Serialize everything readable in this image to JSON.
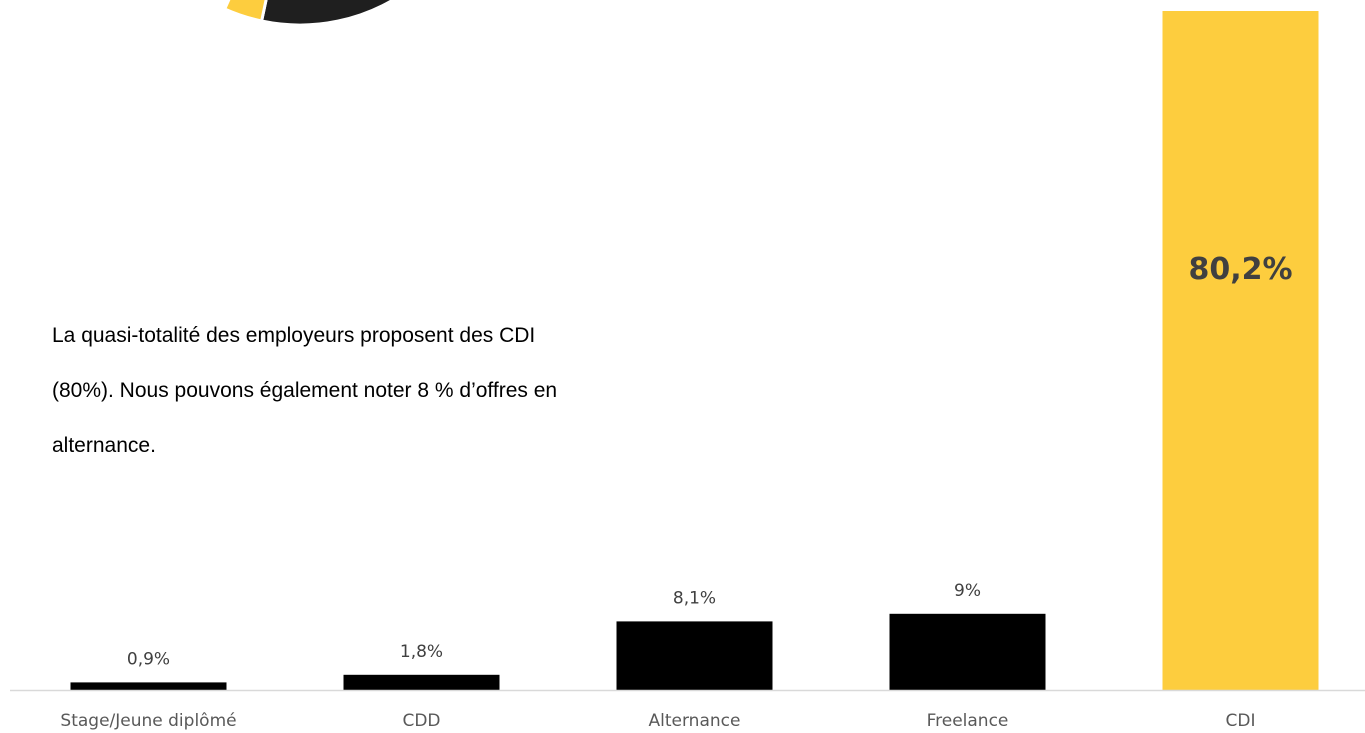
{
  "caption": {
    "lines": [
      "La quasi-totalité des employeurs proposent des CDI",
      "(80%). Nous pouvons également noter 8 % d’offres en",
      "alternance."
    ]
  },
  "chart_data": {
    "type": "bar",
    "categories": [
      "Stage/Jeune diplômé",
      "CDD",
      "Alternance",
      "Freelance",
      "CDI"
    ],
    "values": [
      0.9,
      1.8,
      8.1,
      9,
      80.2
    ],
    "value_labels": [
      "0,9%",
      "1,8%",
      "8,1%",
      "9%",
      "80,2%"
    ],
    "highlight_index": 4,
    "colors": {
      "default": "#000000",
      "highlight": "#FDCD3E",
      "axis": "#D9D9D9"
    },
    "title": "",
    "xlabel": "",
    "ylabel": "",
    "ylim": [
      0,
      80.2
    ],
    "grid": false
  },
  "pie_fragment": {
    "colors": [
      "#FDCD3E",
      "#1F1F1F"
    ]
  }
}
